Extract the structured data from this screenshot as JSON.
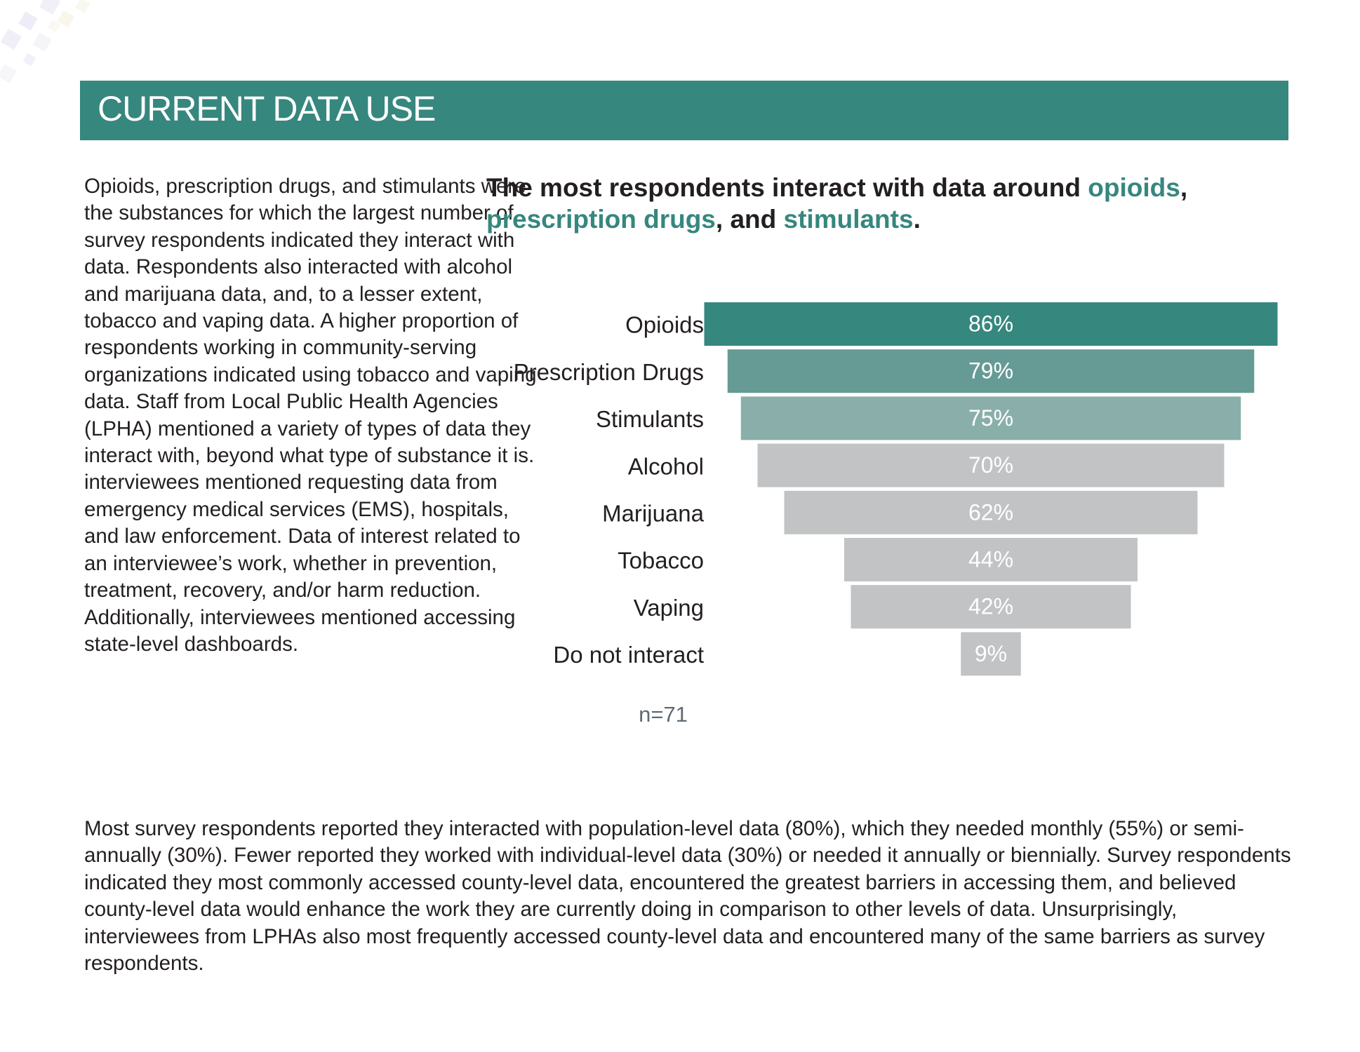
{
  "header": {
    "title": "CURRENT DATA USE"
  },
  "intro_text": "Opioids, prescription drugs, and stimulants were the substances for which the largest number of survey respondents indicated they interact with data. Respondents also interacted with alcohol and marijuana data, and, to a lesser extent, tobacco and vaping data. A higher proportion of respondents working in community-serving organizations indicated using tobacco and vaping data. Staff from Local Public Health Agencies (LPHA) mentioned a variety of types of data they interact with, beyond what type of substance it is. interviewees mentioned requesting data from emergency medical services (EMS), hospitals, and law enforcement. Data of interest related to an interviewee’s work, whether in prevention, treatment, recovery, and/or harm reduction. Additionally, interviewees mentioned accessing state-level dashboards.",
  "headline": {
    "part1": "The most respondents interact with data around ",
    "accent1": "opioids",
    "part2": ", ",
    "accent2": "prescription drugs",
    "part3": ", and ",
    "accent3": "stimulants",
    "part4": "."
  },
  "bottom_text": "Most survey respondents reported they interacted with population-level data (80%), which they needed monthly (55%) or semi-annually (30%). Fewer reported they worked with individual-level data (30%) or needed it annually or biennially. Survey respondents indicated they most commonly accessed county-level data, encountered the greatest barriers in accessing them, and believed county-level data would enhance the work they are currently doing in comparison to other levels of data. Unsurprisingly, interviewees from LPHAs also most frequently accessed county-level data and encountered many of the same barriers as survey respondents.",
  "chart_data": {
    "type": "bar",
    "orientation": "horizontal",
    "layout": "centered funnel",
    "categories": [
      "Opioids",
      "Prescription Drugs",
      "Stimulants",
      "Alcohol",
      "Marijuana",
      "Tobacco",
      "Vaping",
      "Do not interact"
    ],
    "values": [
      86,
      79,
      75,
      70,
      62,
      44,
      42,
      9
    ],
    "value_labels": [
      "86%",
      "79%",
      "75%",
      "70%",
      "62%",
      "44%",
      "42%",
      "9%"
    ],
    "colors": [
      "#36877e",
      "#669a95",
      "#8aafab",
      "#c2c3c5",
      "#c2c3c5",
      "#c2c3c5",
      "#c2c3c5",
      "#c2c3c5"
    ],
    "note": "n=71",
    "title": "",
    "xlabel": "",
    "ylabel": "",
    "xlim": [
      0,
      100
    ],
    "grid": false
  },
  "colors": {
    "accent": "#36877e",
    "text": "#231f20",
    "note": "#5c6b77"
  }
}
